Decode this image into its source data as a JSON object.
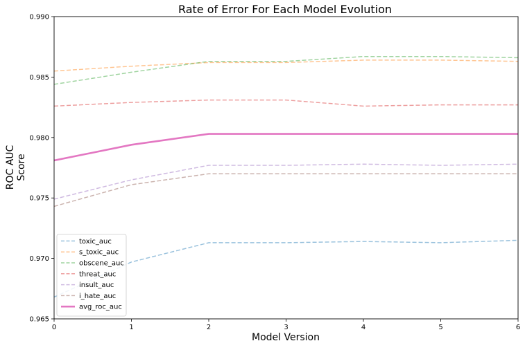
{
  "chart_data": {
    "type": "line",
    "title": "Rate of Error For Each Model Evolution",
    "xlabel": "Model Version",
    "ylabel_lines": [
      "ROC AUC",
      "Score"
    ],
    "x": [
      0,
      1,
      2,
      3,
      4,
      5,
      6
    ],
    "xlim": [
      0,
      6
    ],
    "ylim": [
      0.965,
      0.99
    ],
    "xticks": [
      0,
      1,
      2,
      3,
      4,
      5,
      6
    ],
    "xtick_labels": [
      "0",
      "1",
      "2",
      "3",
      "4",
      "5",
      "6"
    ],
    "yticks": [
      0.965,
      0.97,
      0.975,
      0.98,
      0.985,
      0.99
    ],
    "ytick_labels": [
      "0.965",
      "0.970",
      "0.975",
      "0.980",
      "0.985",
      "0.990"
    ],
    "grid": false,
    "legend_position": "lower-left",
    "series": [
      {
        "name": "toxic_auc",
        "color": "#1f77b4",
        "style": "dashed",
        "values": [
          0.9668,
          0.9697,
          0.9713,
          0.9713,
          0.9714,
          0.9713,
          0.9715
        ]
      },
      {
        "name": "s_toxic_auc",
        "color": "#ff7f0e",
        "style": "dashed",
        "values": [
          0.9855,
          0.9859,
          0.9862,
          0.9862,
          0.9864,
          0.9864,
          0.9863
        ]
      },
      {
        "name": "obscene_auc",
        "color": "#2ca02c",
        "style": "dashed",
        "values": [
          0.9844,
          0.9854,
          0.9863,
          0.9863,
          0.9867,
          0.9867,
          0.9866
        ]
      },
      {
        "name": "threat_auc",
        "color": "#d62728",
        "style": "dashed",
        "values": [
          0.9826,
          0.9829,
          0.9831,
          0.9831,
          0.9826,
          0.9827,
          0.9827
        ]
      },
      {
        "name": "insult_auc",
        "color": "#9467bd",
        "style": "dashed",
        "values": [
          0.9749,
          0.9765,
          0.9777,
          0.9777,
          0.9778,
          0.9777,
          0.9778
        ]
      },
      {
        "name": "i_hate_auc",
        "color": "#8c564b",
        "style": "dashed",
        "values": [
          0.9743,
          0.9761,
          0.977,
          0.977,
          0.977,
          0.977,
          0.977
        ]
      },
      {
        "name": "avg_roc_auc",
        "color": "#e377c2",
        "style": "solid",
        "values": [
          0.9781,
          0.9794,
          0.9803,
          0.9803,
          0.9803,
          0.9803,
          0.9803
        ]
      }
    ]
  }
}
